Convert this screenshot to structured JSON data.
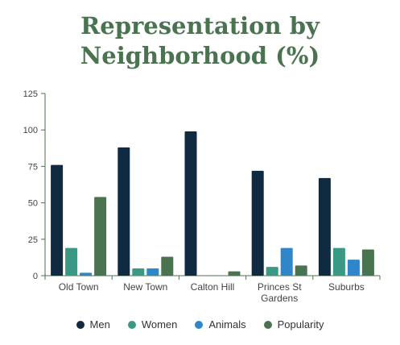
{
  "chart_data": {
    "type": "bar",
    "title_lines": [
      "Representation by",
      "Neighborhood (%)"
    ],
    "categories": [
      [
        "Old Town"
      ],
      [
        "New Town"
      ],
      [
        "Calton Hill"
      ],
      [
        "Princes St",
        "Gardens"
      ],
      [
        "Suburbs"
      ]
    ],
    "series": [
      {
        "name": "Men",
        "color": "#0f2a41",
        "values": [
          76,
          88,
          99,
          72,
          67
        ]
      },
      {
        "name": "Women",
        "color": "#3a9985",
        "values": [
          19,
          5,
          0,
          6,
          19
        ]
      },
      {
        "name": "Animals",
        "color": "#2f87c9",
        "values": [
          2,
          5,
          0,
          19,
          11
        ]
      },
      {
        "name": "Popularity",
        "color": "#4a7350",
        "values": [
          54,
          13,
          3,
          7,
          18
        ]
      }
    ],
    "ylim": [
      0,
      125
    ],
    "yticks": [
      0,
      25,
      50,
      75,
      100,
      125
    ],
    "xlabel": "",
    "ylabel": "",
    "grid": false,
    "legend_position": "bottom"
  }
}
